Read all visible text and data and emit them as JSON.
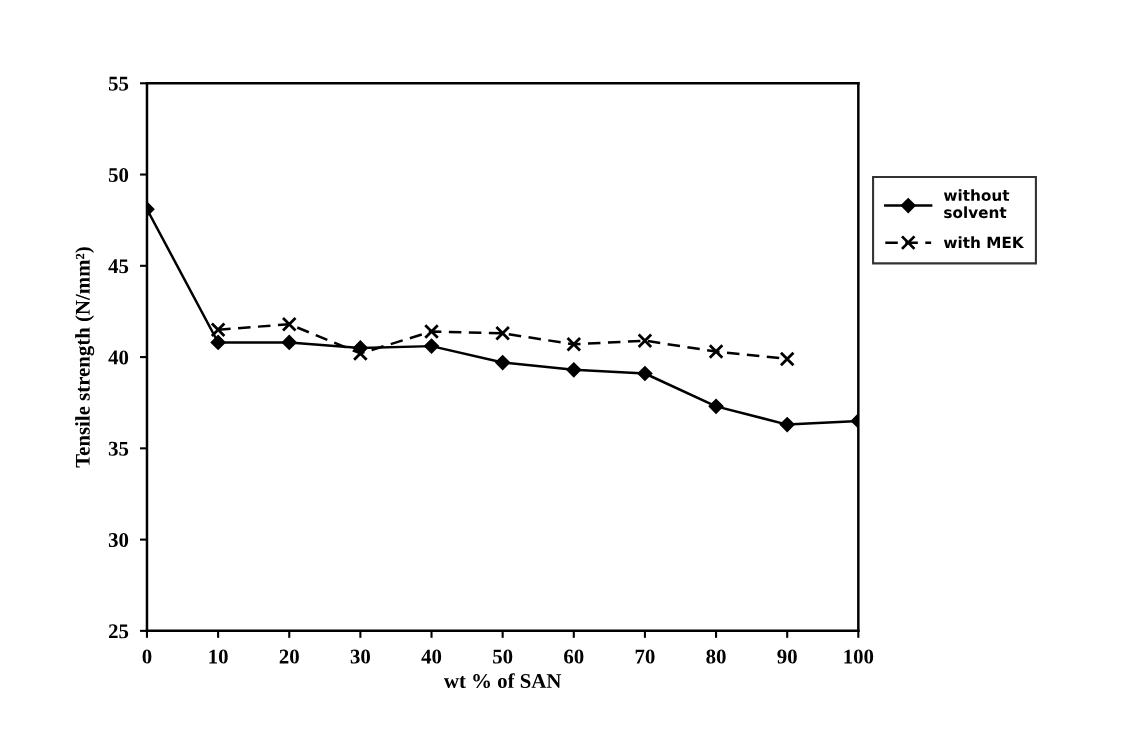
{
  "chart_data": {
    "type": "line",
    "xlabel": "wt % of SAN",
    "ylabel": "Tensile strength (N/mm²)",
    "x": [
      0,
      10,
      20,
      30,
      40,
      50,
      60,
      70,
      80,
      90,
      100
    ],
    "xlim": [
      0,
      100
    ],
    "xticks": [
      0,
      10,
      20,
      30,
      40,
      50,
      60,
      70,
      80,
      90,
      100
    ],
    "ylim": [
      25,
      55
    ],
    "yticks": [
      25,
      30,
      35,
      40,
      45,
      50,
      55
    ],
    "grid": false,
    "legend": "right",
    "series": [
      {
        "name": "without\nsolvent",
        "color": "#000000",
        "marker": "diamond",
        "line_style": "solid",
        "values": [
          48.1,
          40.8,
          40.8,
          40.5,
          40.6,
          39.7,
          39.3,
          39.1,
          37.3,
          36.3,
          36.5
        ]
      },
      {
        "name": "with MEK",
        "color": "#000000",
        "marker": "cross",
        "line_style": "dashed",
        "x": [
          10,
          20,
          30,
          40,
          50,
          60,
          70,
          80,
          90
        ],
        "values": [
          41.5,
          41.8,
          40.2,
          41.4,
          41.3,
          40.7,
          40.9,
          40.3,
          39.9
        ]
      }
    ]
  }
}
